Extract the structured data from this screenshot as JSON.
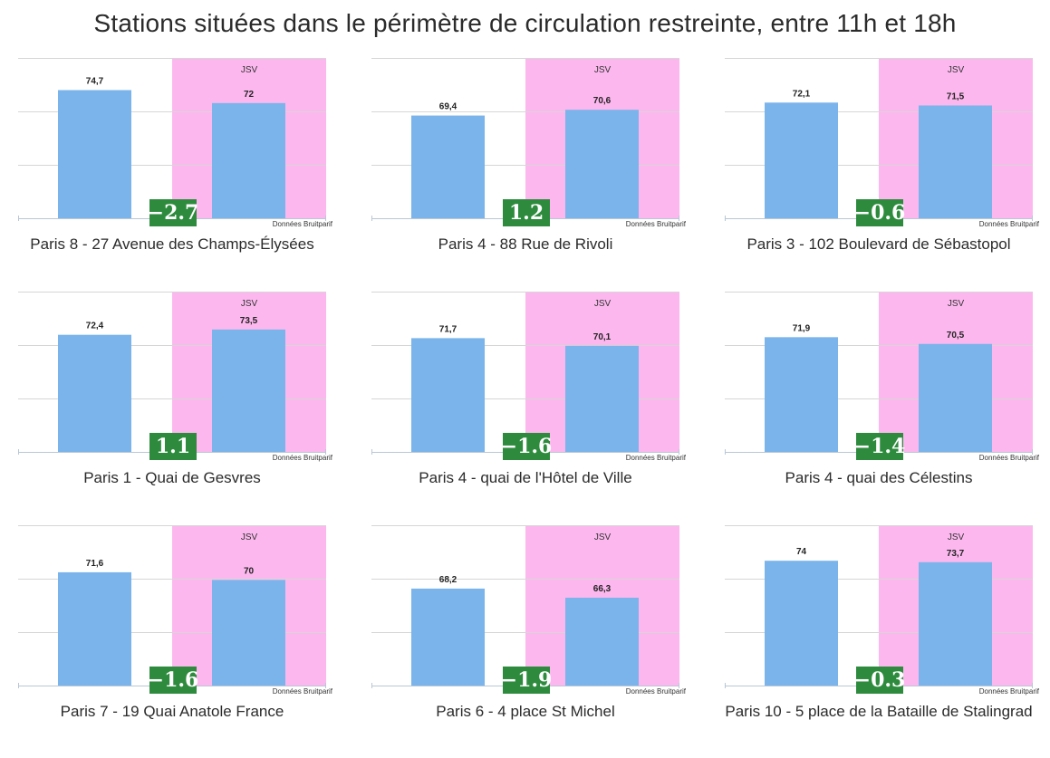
{
  "title": "Stations situées dans le périmètre de circulation restreinte, entre 11h et 18h",
  "zone_label": "JSV",
  "source": "Données Bruitparif",
  "colors": {
    "bar": "#7ab4ea",
    "zone": "#fcb8ee",
    "delta_bg": "#2e8b3e",
    "grid": "#d6d6d6"
  },
  "chart_data": [
    {
      "type": "bar",
      "station": "Paris 8 - 27 Avenue des Champs-Élysées",
      "values": [
        74.7,
        72
      ],
      "labels": [
        "74,7",
        "72"
      ],
      "delta": "−2.7",
      "highlighted_bar": 1
    },
    {
      "type": "bar",
      "station": "Paris 4 - 88 Rue de Rivoli",
      "values": [
        69.4,
        70.6
      ],
      "labels": [
        "69,4",
        "70,6"
      ],
      "delta": "1.2",
      "highlighted_bar": 1
    },
    {
      "type": "bar",
      "station": "Paris 3 - 102 Boulevard de Sébastopol",
      "values": [
        72.1,
        71.5
      ],
      "labels": [
        "72,1",
        "71,5"
      ],
      "delta": "−0.6",
      "highlighted_bar": 1
    },
    {
      "type": "bar",
      "station": "Paris 1 - Quai de Gesvres",
      "values": [
        72.4,
        73.5
      ],
      "labels": [
        "72,4",
        "73,5"
      ],
      "delta": "1.1",
      "highlighted_bar": 1
    },
    {
      "type": "bar",
      "station": "Paris 4 - quai de l'Hôtel de Ville",
      "values": [
        71.7,
        70.1
      ],
      "labels": [
        "71,7",
        "70,1"
      ],
      "delta": "−1.6",
      "highlighted_bar": 1
    },
    {
      "type": "bar",
      "station": "Paris 4 - quai des Célestins",
      "values": [
        71.9,
        70.5
      ],
      "labels": [
        "71,9",
        "70,5"
      ],
      "delta": "−1.4",
      "highlighted_bar": 1
    },
    {
      "type": "bar",
      "station": "Paris 7 - 19 Quai Anatole France",
      "values": [
        71.6,
        70
      ],
      "labels": [
        "71,6",
        "70"
      ],
      "delta": "−1.6",
      "highlighted_bar": 1
    },
    {
      "type": "bar",
      "station": "Paris 6 - 4 place St Michel",
      "values": [
        68.2,
        66.3
      ],
      "labels": [
        "68,2",
        "66,3"
      ],
      "delta": "−1.9",
      "highlighted_bar": 1
    },
    {
      "type": "bar",
      "station": "Paris 10 - 5 place de la Bataille de Stalingrad",
      "values": [
        74,
        73.7
      ],
      "labels": [
        "74",
        "73,7"
      ],
      "delta": "−0.3",
      "highlighted_bar": 1
    }
  ]
}
